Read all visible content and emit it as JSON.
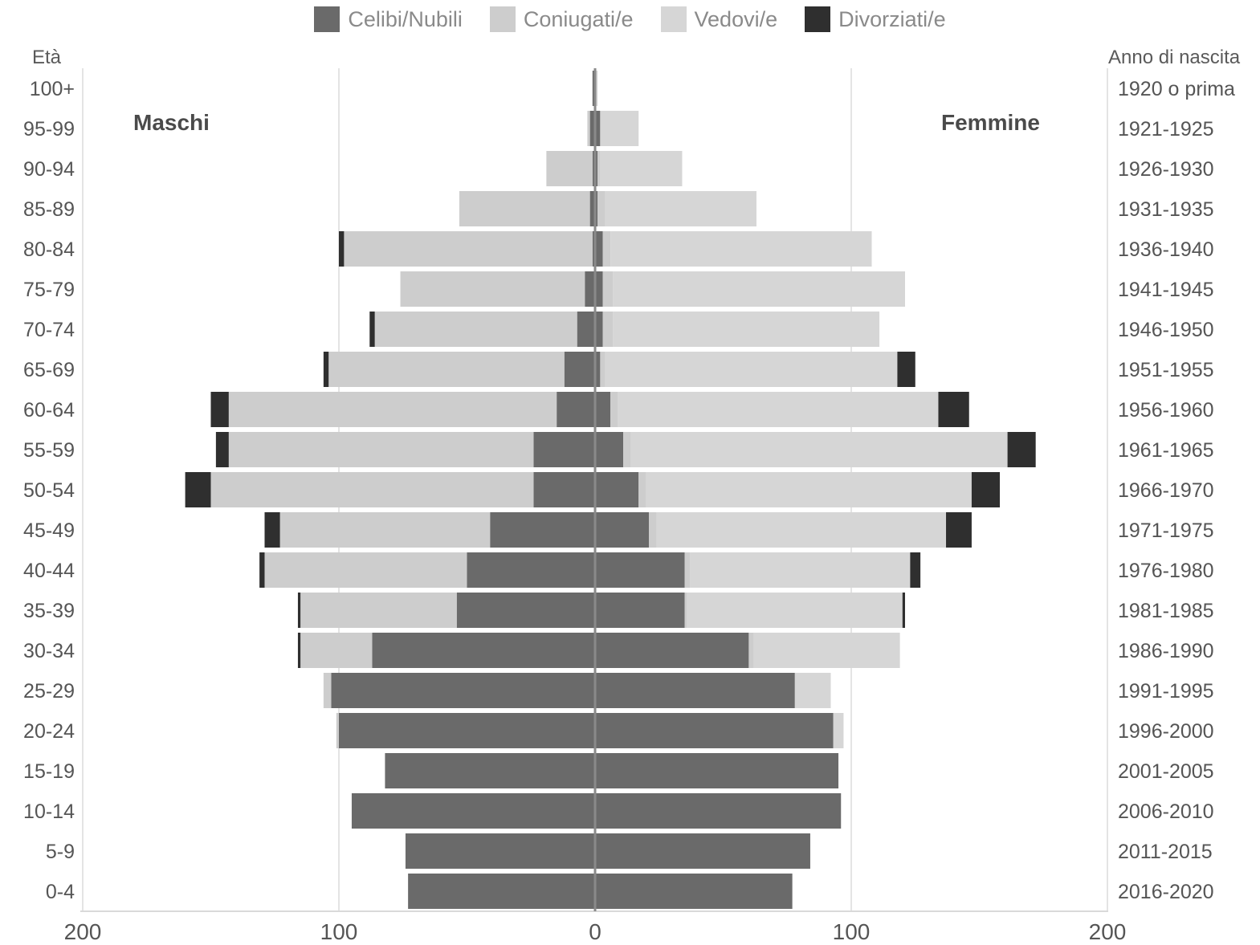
{
  "legend": [
    {
      "key": "celibi",
      "label": "Celibi/Nubili",
      "color": "#6a6a6a"
    },
    {
      "key": "coniugati",
      "label": "Coniugati/e",
      "color": "#cdcdcd"
    },
    {
      "key": "vedovi",
      "label": "Vedovi/e",
      "color": "#d6d6d6"
    },
    {
      "key": "divorziati",
      "label": "Divorziati/e",
      "color": "#2f2f2f"
    }
  ],
  "labels": {
    "left_axis_title": "Età",
    "right_axis_title": "Anno di nascita",
    "males": "Maschi",
    "females": "Femmine"
  },
  "chart_data": {
    "type": "bar",
    "orientation": "horizontal-diverging",
    "xlim": [
      -200,
      200
    ],
    "x_ticks": [
      -200,
      -100,
      0,
      100,
      200
    ],
    "x_tick_labels": [
      "200",
      "100",
      "0",
      "100",
      "200"
    ],
    "grid": true,
    "legend_position": "top-center",
    "age_groups": [
      "100+",
      "95-99",
      "90-94",
      "85-89",
      "80-84",
      "75-79",
      "70-74",
      "65-69",
      "60-64",
      "55-59",
      "50-54",
      "45-49",
      "40-44",
      "35-39",
      "30-34",
      "25-29",
      "20-24",
      "15-19",
      "10-14",
      "5-9",
      "0-4"
    ],
    "birth_years": [
      "1920 o prima",
      "1921-1925",
      "1926-1930",
      "1931-1935",
      "1936-1940",
      "1941-1945",
      "1946-1950",
      "1951-1955",
      "1956-1960",
      "1961-1965",
      "1966-1970",
      "1971-1975",
      "1976-1980",
      "1981-1985",
      "1986-1990",
      "1991-1995",
      "1996-2000",
      "2001-2005",
      "2006-2010",
      "2011-2015",
      "2016-2020"
    ],
    "series": [
      {
        "name": "Celibi/Nubili",
        "key": "celibi",
        "males": [
          1,
          2,
          1,
          2,
          1,
          4,
          7,
          12,
          15,
          24,
          24,
          41,
          50,
          54,
          87,
          103,
          100,
          82,
          95,
          74,
          73
        ],
        "females": [
          0,
          2,
          1,
          1,
          3,
          3,
          3,
          2,
          6,
          11,
          17,
          21,
          35,
          35,
          60,
          78,
          93,
          95,
          96,
          84,
          77
        ]
      },
      {
        "name": "Coniugati/e",
        "key": "coniugati",
        "males": [
          0,
          1,
          18,
          51,
          97,
          72,
          79,
          92,
          128,
          119,
          126,
          82,
          79,
          61,
          28,
          3,
          1,
          0,
          0,
          0,
          0
        ],
        "females": [
          0,
          0,
          1,
          3,
          3,
          4,
          4,
          2,
          3,
          3,
          3,
          3,
          2,
          1,
          2,
          0,
          0,
          0,
          0,
          0,
          0
        ]
      },
      {
        "name": "Vedovi/e",
        "key": "vedovi",
        "males": [
          0,
          0,
          0,
          0,
          0,
          0,
          0,
          0,
          0,
          0,
          0,
          0,
          0,
          0,
          0,
          0,
          0,
          0,
          0,
          0,
          0
        ],
        "females": [
          1,
          15,
          32,
          59,
          102,
          114,
          104,
          114,
          125,
          147,
          127,
          113,
          86,
          84,
          57,
          14,
          4,
          0,
          0,
          0,
          0
        ]
      },
      {
        "name": "Divorziati/e",
        "key": "divorziati",
        "males": [
          0,
          0,
          0,
          0,
          2,
          0,
          2,
          2,
          7,
          5,
          10,
          6,
          2,
          1,
          1,
          0,
          0,
          0,
          0,
          0,
          0
        ],
        "females": [
          0,
          0,
          0,
          0,
          0,
          0,
          0,
          7,
          12,
          11,
          11,
          10,
          4,
          1,
          0,
          0,
          0,
          0,
          0,
          0,
          0
        ]
      }
    ]
  }
}
